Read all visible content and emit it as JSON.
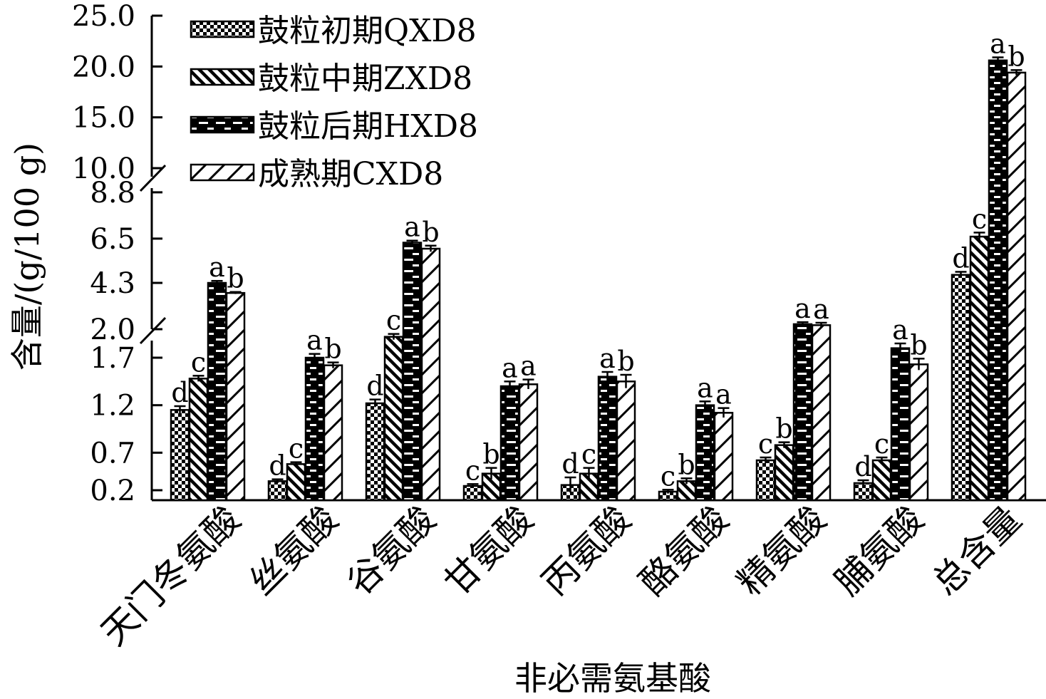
{
  "chart_data": {
    "type": "bar",
    "title": "",
    "xlabel": "非必需氨基酸",
    "ylabel": "含量/(g/100 g)",
    "categories": [
      "天门冬氨酸",
      "丝氨酸",
      "谷氨酸",
      "甘氨酸",
      "丙氨酸",
      "酪氨酸",
      "精氨酸",
      "脯氨酸",
      "总含量"
    ],
    "series": [
      {
        "name": "鼓粒初期QXD8",
        "pattern": "checker",
        "values": [
          1.15,
          0.4,
          1.22,
          0.35,
          0.36,
          0.29,
          0.62,
          0.38,
          4.7
        ],
        "errors": [
          0.04,
          0.02,
          0.04,
          0.02,
          0.08,
          0.02,
          0.03,
          0.03,
          0.15
        ],
        "labels": [
          "d",
          "d",
          "d",
          "c",
          "d",
          "c",
          "c",
          "d",
          "d"
        ]
      },
      {
        "name": "鼓粒中期ZXD8",
        "pattern": "backslash",
        "values": [
          1.48,
          0.58,
          1.92,
          0.48,
          0.48,
          0.4,
          0.78,
          0.62,
          6.6
        ],
        "errors": [
          0.03,
          0.02,
          0.03,
          0.06,
          0.06,
          0.03,
          0.03,
          0.03,
          0.2
        ],
        "labels": [
          "c",
          "c",
          "c",
          "b",
          "c",
          "b",
          "b",
          "c",
          "c"
        ]
      },
      {
        "name": "鼓粒后期HXD8",
        "pattern": "brick",
        "values": [
          4.3,
          1.7,
          6.3,
          1.4,
          1.5,
          1.2,
          2.25,
          1.8,
          20.6
        ],
        "errors": [
          0.1,
          0.04,
          0.1,
          0.05,
          0.05,
          0.04,
          0.1,
          0.05,
          0.3
        ],
        "labels": [
          "a",
          "a",
          "a",
          "a",
          "a",
          "a",
          "a",
          "a",
          "a"
        ]
      },
      {
        "name": "成熟期CXD8",
        "pattern": "slash",
        "values": [
          3.8,
          1.62,
          6.0,
          1.42,
          1.45,
          1.12,
          2.2,
          1.63,
          19.4
        ],
        "errors": [
          0.05,
          0.03,
          0.15,
          0.05,
          0.07,
          0.05,
          0.12,
          0.06,
          0.25
        ],
        "labels": [
          "b",
          "b",
          "b",
          "a",
          "b",
          "a",
          "a",
          "b",
          "b"
        ]
      }
    ],
    "y_axis_segments": [
      {
        "range": [
          0.2,
          2.0
        ],
        "ticks": [
          "0.2",
          "0.7",
          "1.2",
          "1.7",
          "2.0"
        ]
      },
      {
        "range": [
          2.0,
          10.0
        ],
        "ticks": [
          "2.0",
          "4.3",
          "6.5",
          "8.8",
          "10.0"
        ]
      },
      {
        "range": [
          10.0,
          25.0
        ],
        "ticks": [
          "10.0",
          "15.0",
          "20.0",
          "25.0"
        ]
      }
    ],
    "legend_position": "top-left",
    "grid": false
  }
}
